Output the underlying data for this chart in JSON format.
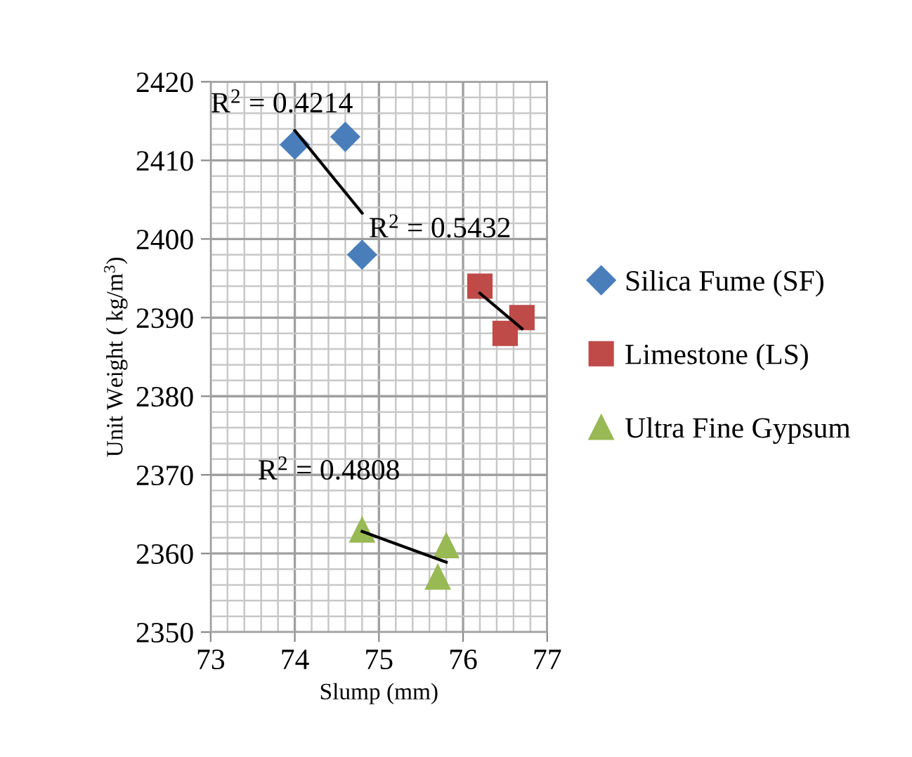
{
  "chart_data": {
    "type": "scatter",
    "xlabel": "Slump (mm)",
    "ylabel": "Unit Weight ( kg/m$^{3}$)",
    "xlim": [
      73,
      77
    ],
    "xticks": [
      73,
      74,
      75,
      76,
      77
    ],
    "ylim": [
      2350,
      2420
    ],
    "yticks": [
      2350,
      2360,
      2370,
      2380,
      2390,
      2400,
      2410,
      2420
    ],
    "grid": true,
    "legend": "right",
    "series": [
      {
        "name": "Silica Fume (SF)",
        "color": "#4a7ebb",
        "marker": "diamond",
        "x": [
          74.0,
          74.6,
          74.8
        ],
        "values": [
          2412,
          2413,
          2398
        ]
      },
      {
        "name": "Limestone (LS)",
        "color": "#be4b48",
        "marker": "square",
        "x": [
          76.2,
          76.5,
          76.7
        ],
        "values": [
          2394,
          2388,
          2390
        ]
      },
      {
        "name": "Ultra Fine Gypsum",
        "color": "#98b954",
        "marker": "triangle",
        "x": [
          74.8,
          75.7,
          75.8
        ],
        "values": [
          2363,
          2357,
          2361
        ]
      },
      {
        "type": "line",
        "color": "#000000",
        "marker": "none",
        "x": [
          74.0,
          74.8
        ],
        "values": [
          2413.8,
          2403.3
        ]
      },
      {
        "type": "line",
        "color": "#000000",
        "marker": "none",
        "x": [
          76.2,
          76.7
        ],
        "values": [
          2393.1,
          2388.6
        ]
      },
      {
        "type": "line",
        "color": "#000000",
        "marker": "none",
        "x": [
          74.8,
          75.8
        ],
        "values": [
          2362.8,
          2358.9
        ]
      }
    ],
    "annotations": [
      "R$^{2}$ = 0.4214",
      "R$^{2}$ = 0.5432",
      "R$^{2}$ = 0.4808"
    ]
  }
}
